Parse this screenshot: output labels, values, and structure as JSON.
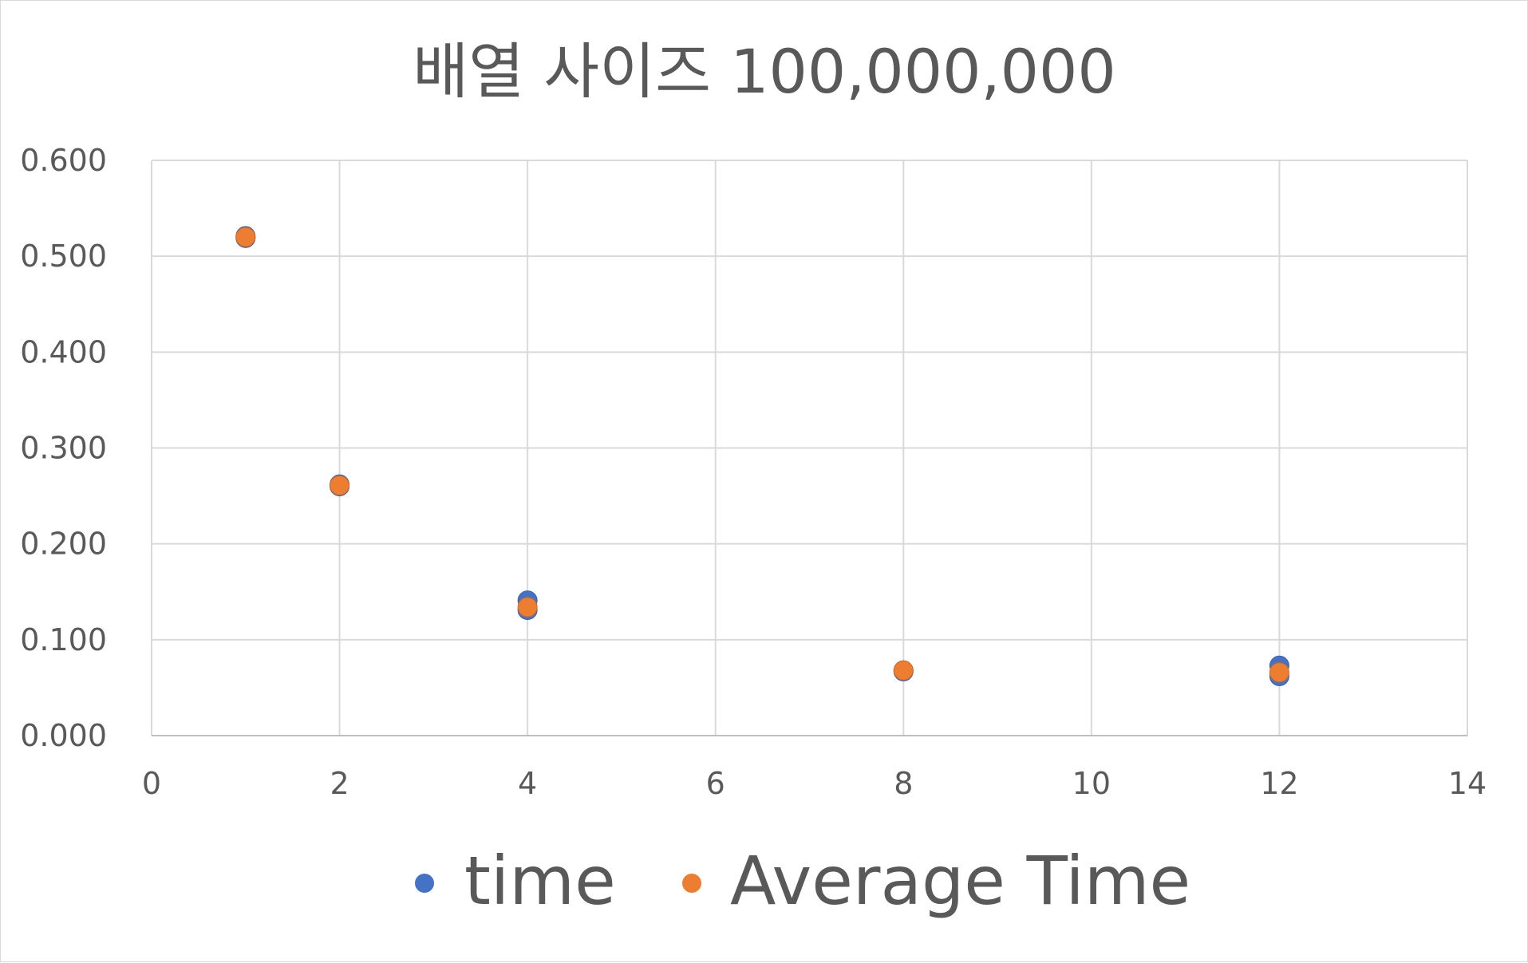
{
  "chart_data": {
    "type": "scatter",
    "title": "배열 사이즈 100,000,000",
    "xlabel": "",
    "ylabel": "",
    "xlim": [
      0,
      14
    ],
    "ylim": [
      0,
      0.6
    ],
    "x_ticks": [
      "0",
      "2",
      "4",
      "6",
      "8",
      "10",
      "12",
      "14"
    ],
    "y_ticks": [
      "0.000",
      "0.100",
      "0.200",
      "0.300",
      "0.400",
      "0.500",
      "0.600"
    ],
    "grid": true,
    "legend_position": "bottom",
    "series": [
      {
        "name": "time",
        "color": "#4472c4",
        "points": [
          {
            "x": 1,
            "y": 0.519
          },
          {
            "x": 1,
            "y": 0.521
          },
          {
            "x": 2,
            "y": 0.26
          },
          {
            "x": 2,
            "y": 0.262
          },
          {
            "x": 4,
            "y": 0.141
          },
          {
            "x": 4,
            "y": 0.131
          },
          {
            "x": 8,
            "y": 0.068
          },
          {
            "x": 8,
            "y": 0.067
          },
          {
            "x": 12,
            "y": 0.073
          },
          {
            "x": 12,
            "y": 0.062
          }
        ]
      },
      {
        "name": "Average Time",
        "color": "#ed7d31",
        "points": [
          {
            "x": 1,
            "y": 0.52
          },
          {
            "x": 2,
            "y": 0.261
          },
          {
            "x": 4,
            "y": 0.134
          },
          {
            "x": 8,
            "y": 0.068
          },
          {
            "x": 12,
            "y": 0.066
          }
        ]
      }
    ]
  }
}
